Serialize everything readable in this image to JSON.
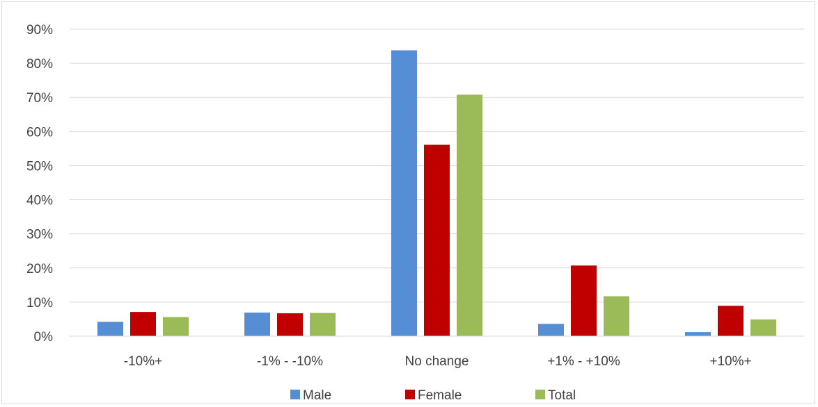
{
  "chart_data": {
    "type": "bar",
    "title": "",
    "xlabel": "",
    "ylabel": "",
    "categories": [
      "-10%+",
      "-1% - -10%",
      "No change",
      "+1% - +10%",
      "+10%+"
    ],
    "series": [
      {
        "name": "Male",
        "color": "#558ed5",
        "values": [
          4.2,
          6.9,
          83.8,
          3.6,
          1.2
        ]
      },
      {
        "name": "Female",
        "color": "#c00000",
        "values": [
          7.1,
          6.7,
          56.1,
          20.7,
          8.9
        ]
      },
      {
        "name": "Total",
        "color": "#9bbb59",
        "values": [
          5.6,
          6.8,
          70.8,
          11.7,
          4.9
        ]
      }
    ],
    "ylim": [
      0,
      90
    ],
    "yticks": [
      0,
      10,
      20,
      30,
      40,
      50,
      60,
      70,
      80,
      90
    ],
    "ytick_suffix": "%",
    "grid": true,
    "legend_position": "bottom"
  }
}
